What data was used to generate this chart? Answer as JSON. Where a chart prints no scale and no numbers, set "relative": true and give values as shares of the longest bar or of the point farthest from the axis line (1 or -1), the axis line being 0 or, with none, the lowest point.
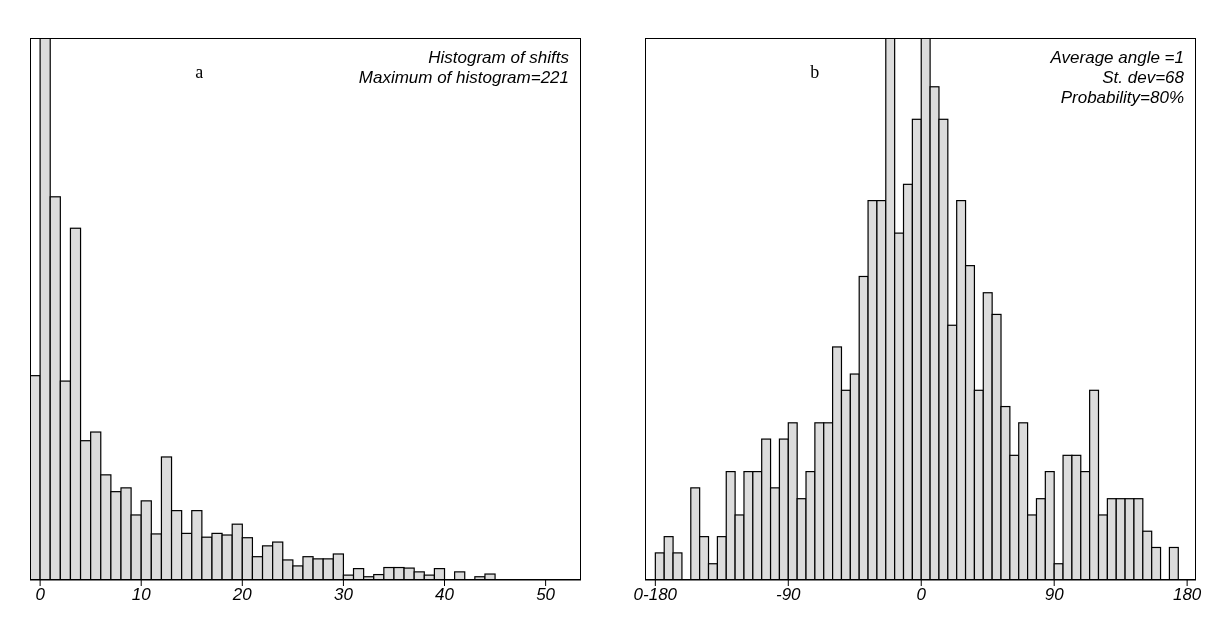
{
  "chart_data": [
    {
      "type": "bar",
      "relative": true,
      "color": "#dcdcdc",
      "x": [
        -0.5,
        0.5,
        1.5,
        2.5,
        3.5,
        4.5,
        5.5,
        6.5,
        7.5,
        8.5,
        9.5,
        10.5,
        11.5,
        12.5,
        13.5,
        14.5,
        15.5,
        16.5,
        17.5,
        18.5,
        19.5,
        20.5,
        21.5,
        22.5,
        23.5,
        24.5,
        25.5,
        26.5,
        27.5,
        28.5,
        29.5,
        30.5,
        31.5,
        32.5,
        33.5,
        34.5,
        35.5,
        36.5,
        37.5,
        38.5,
        39.5,
        40.5,
        41.5,
        42.5,
        43.5,
        44.5
      ],
      "values": [
        0.377,
        1,
        0.707,
        0.367,
        0.649,
        0.257,
        0.273,
        0.194,
        0.163,
        0.17,
        0.12,
        0.146,
        0.085,
        0.227,
        0.128,
        0.086,
        0.128,
        0.079,
        0.086,
        0.083,
        0.103,
        0.078,
        0.043,
        0.063,
        0.07,
        0.037,
        0.026,
        0.043,
        0.039,
        0.039,
        0.048,
        0.009,
        0.021,
        0.006,
        0.01,
        0.023,
        0.023,
        0.022,
        0.015,
        0.009,
        0.021,
        0,
        0.015,
        0,
        0.006,
        0.011
      ],
      "xlim": [
        -1,
        53.5
      ],
      "xticks": [
        0,
        10,
        20,
        30,
        40,
        50
      ],
      "annotations": [
        "a",
        "Histogram of shifts",
        "Maximum of histogram=221"
      ]
    },
    {
      "type": "bar",
      "relative": true,
      "color": "#dcdcdc",
      "x": [
        -177,
        -171,
        -165,
        -159,
        -153,
        -147,
        -141,
        -135,
        -129,
        -123,
        -117,
        -111,
        -105,
        -99,
        -93,
        -87,
        -81,
        -75,
        -69,
        -63,
        -57,
        -51,
        -45,
        -39,
        -33,
        -27,
        -21,
        -15,
        -9,
        -3,
        3,
        9,
        15,
        21,
        27,
        33,
        39,
        45,
        51,
        57,
        63,
        69,
        75,
        81,
        87,
        93,
        99,
        105,
        111,
        117,
        123,
        129,
        135,
        141,
        147,
        153,
        159,
        165,
        171,
        177
      ],
      "values": [
        0.05,
        0.08,
        0.05,
        0,
        0.17,
        0.08,
        0.03,
        0.08,
        0.2,
        0.12,
        0.2,
        0.2,
        0.26,
        0.17,
        0.26,
        0.29,
        0.15,
        0.2,
        0.29,
        0.29,
        0.43,
        0.35,
        0.38,
        0.56,
        0.7,
        0.7,
        1,
        0.64,
        0.73,
        0.85,
        1,
        0.91,
        0.85,
        0.47,
        0.7,
        0.58,
        0.35,
        0.53,
        0.49,
        0.32,
        0.23,
        0.29,
        0.12,
        0.15,
        0.2,
        0.03,
        0.23,
        0.23,
        0.2,
        0.35,
        0.12,
        0.15,
        0.15,
        0.15,
        0.15,
        0.09,
        0.06,
        0,
        0.06,
        0
      ],
      "xlim": [
        -187,
        186
      ],
      "xticks": [
        {
          "value": -180,
          "label": "0-180"
        },
        -90,
        0,
        90,
        180
      ],
      "annotations": [
        "b",
        "Average angle =1",
        "St. dev=68",
        "Probability=80%"
      ]
    }
  ]
}
